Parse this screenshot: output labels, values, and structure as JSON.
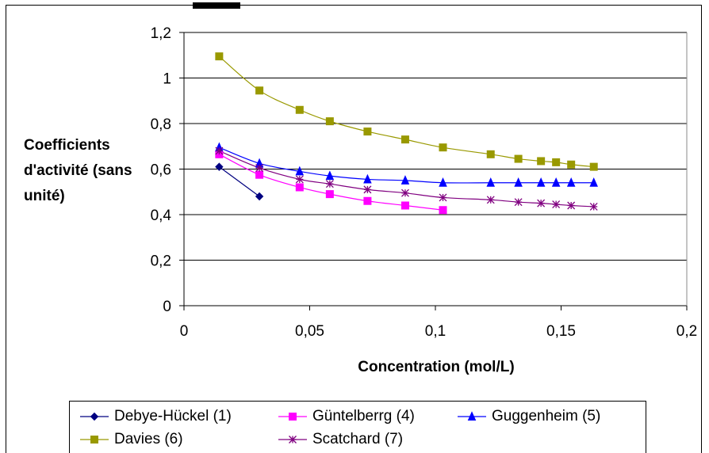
{
  "chart_data": {
    "type": "line",
    "title": "",
    "xlabel": "Concentration (mol/L)",
    "ylabel": "Coefficients d'activité (sans unité)",
    "xlim": [
      0,
      0.2
    ],
    "ylim": [
      0,
      1.2
    ],
    "x_ticks": [
      "0",
      "0,05",
      "0,1",
      "0,15",
      "0,2"
    ],
    "y_ticks": [
      "0",
      "0,2",
      "0,4",
      "0,6",
      "0,8",
      "1",
      "1,2"
    ],
    "grid": "horizontal",
    "legend_position": "bottom",
    "series": [
      {
        "name": "Debye-Hückel (1)",
        "color": "#000080",
        "marker": "diamond",
        "x": [
          0.014,
          0.03
        ],
        "y": [
          0.61,
          0.48
        ]
      },
      {
        "name": "Güntelberrg (4)",
        "color": "#ff00ff",
        "marker": "square",
        "x": [
          0.014,
          0.03,
          0.046,
          0.058,
          0.073,
          0.088,
          0.103
        ],
        "y": [
          0.665,
          0.575,
          0.52,
          0.49,
          0.46,
          0.44,
          0.42
        ]
      },
      {
        "name": "Guggenheim (5)",
        "color": "#0000ff",
        "marker": "triangle",
        "x": [
          0.014,
          0.03,
          0.046,
          0.058,
          0.073,
          0.088,
          0.103,
          0.122,
          0.133,
          0.142,
          0.148,
          0.154,
          0.163
        ],
        "y": [
          0.695,
          0.625,
          0.59,
          0.57,
          0.555,
          0.55,
          0.54,
          0.54,
          0.54,
          0.54,
          0.54,
          0.54,
          0.54
        ]
      },
      {
        "name": "Davies (6)",
        "color": "#999900",
        "marker": "square",
        "x": [
          0.014,
          0.03,
          0.046,
          0.058,
          0.073,
          0.088,
          0.103,
          0.122,
          0.133,
          0.142,
          0.148,
          0.154,
          0.163
        ],
        "y": [
          1.095,
          0.945,
          0.86,
          0.81,
          0.765,
          0.73,
          0.695,
          0.665,
          0.645,
          0.635,
          0.63,
          0.62,
          0.61
        ]
      },
      {
        "name": "Scatchard (7)",
        "color": "#800080",
        "marker": "star",
        "x": [
          0.014,
          0.03,
          0.046,
          0.058,
          0.073,
          0.088,
          0.103,
          0.122,
          0.133,
          0.142,
          0.148,
          0.154,
          0.163
        ],
        "y": [
          0.68,
          0.605,
          0.555,
          0.535,
          0.51,
          0.495,
          0.475,
          0.465,
          0.455,
          0.45,
          0.445,
          0.44,
          0.435
        ]
      }
    ]
  }
}
